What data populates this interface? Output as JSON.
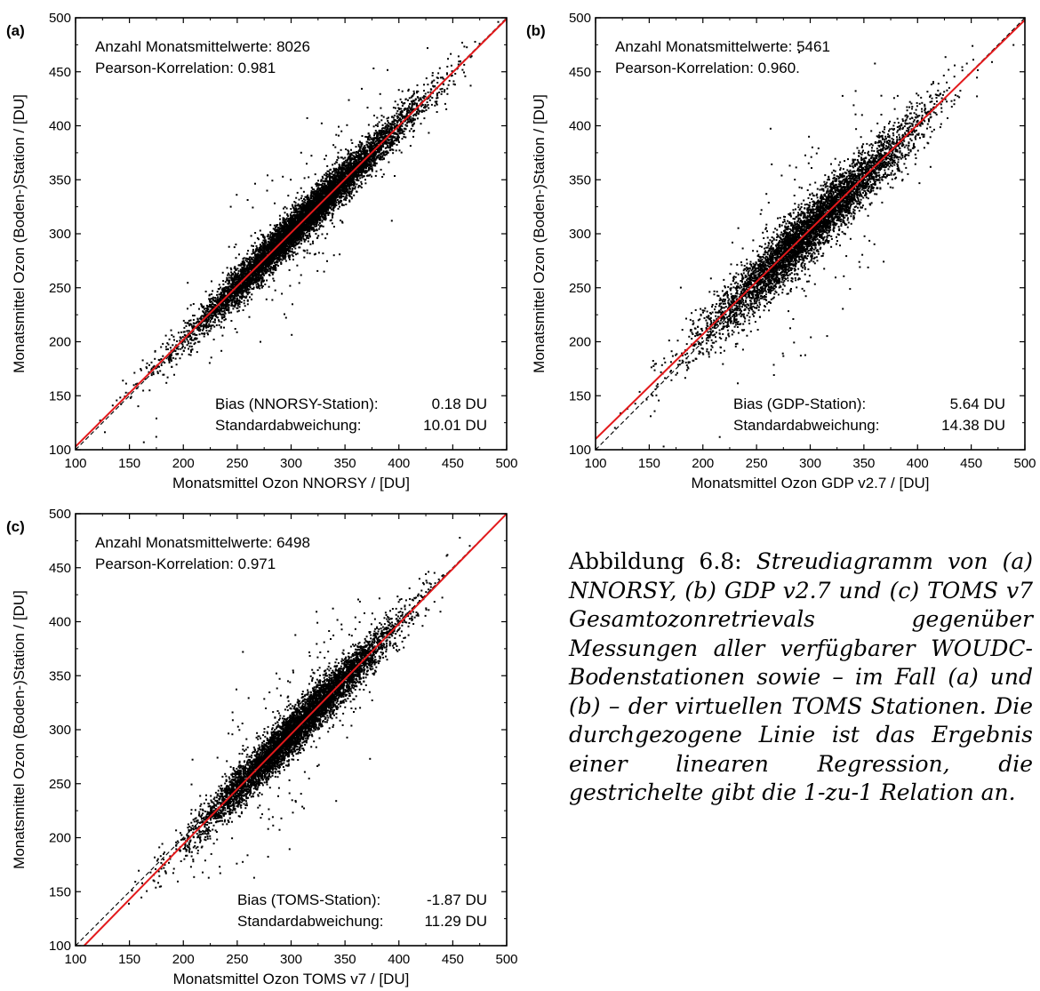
{
  "panels": [
    {
      "label": "(a)",
      "xlabel": "Monatsmittel Ozon NNORSY / [DU]",
      "ylabel": "Monatsmittel Ozon (Boden-)Station / [DU]",
      "annot_top": [
        "Anzahl Monatsmittelwerte: 8026",
        "Pearson-Korrelation: 0.981"
      ],
      "annot_bottom": [
        [
          "Bias (NNORSY-Station):",
          "0.18 DU"
        ],
        [
          "Standardabweichung:",
          "10.01 DU"
        ]
      ]
    },
    {
      "label": "(b)",
      "xlabel": "Monatsmittel Ozon GDP v2.7 / [DU]",
      "ylabel": "Monatsmittel Ozon (Boden-)Station / [DU]",
      "annot_top": [
        "Anzahl Monatsmittelwerte: 5461",
        "Pearson-Korrelation: 0.960."
      ],
      "annot_bottom": [
        [
          "Bias (GDP-Station):",
          "5.64 DU"
        ],
        [
          "Standardabweichung:",
          "14.38 DU"
        ]
      ]
    },
    {
      "label": "(c)",
      "xlabel": "Monatsmittel Ozon TOMS v7 / [DU]",
      "ylabel": "Monatsmittel Ozon (Boden-)Station / [DU]",
      "annot_top": [
        "Anzahl Monatsmittelwerte: 6498",
        "Pearson-Korrelation: 0.971"
      ],
      "annot_bottom": [
        [
          "Bias (TOMS-Station):",
          "-1.87 DU"
        ],
        [
          "Standardabweichung:",
          "11.29 DU"
        ]
      ]
    }
  ],
  "chart_data": [
    {
      "type": "scatter",
      "xlim": [
        100,
        500
      ],
      "ylim": [
        100,
        500
      ],
      "xticks": [
        100,
        150,
        200,
        250,
        300,
        350,
        400,
        450,
        500
      ],
      "yticks": [
        100,
        150,
        200,
        250,
        300,
        350,
        400,
        450,
        500
      ],
      "n_points": 8026,
      "pearson_r": 0.981,
      "bias_du": 0.18,
      "std_du": 10.01,
      "regression_line": {
        "color": "#e31a1c",
        "x": [
          100,
          500
        ],
        "y": [
          103,
          499
        ]
      },
      "identity_line": {
        "color": "#000000",
        "style": "dashed",
        "x": [
          100,
          500
        ],
        "y": [
          100,
          500
        ]
      },
      "point_color": "#000000",
      "scatter_model": {
        "center": 310,
        "spread": 52,
        "noise": 9,
        "outlier_rate": 0.03
      }
    },
    {
      "type": "scatter",
      "xlim": [
        100,
        500
      ],
      "ylim": [
        100,
        500
      ],
      "xticks": [
        100,
        150,
        200,
        250,
        300,
        350,
        400,
        450,
        500
      ],
      "yticks": [
        100,
        150,
        200,
        250,
        300,
        350,
        400,
        450,
        500
      ],
      "n_points": 5461,
      "pearson_r": 0.96,
      "bias_du": 5.64,
      "std_du": 14.38,
      "regression_line": {
        "color": "#e31a1c",
        "x": [
          100,
          500
        ],
        "y": [
          110,
          498
        ]
      },
      "identity_line": {
        "color": "#000000",
        "style": "dashed",
        "x": [
          100,
          500
        ],
        "y": [
          100,
          500
        ]
      },
      "point_color": "#000000",
      "scatter_model": {
        "center": 300,
        "spread": 50,
        "noise": 13,
        "outlier_rate": 0.04
      }
    },
    {
      "type": "scatter",
      "xlim": [
        100,
        500
      ],
      "ylim": [
        100,
        500
      ],
      "xticks": [
        100,
        150,
        200,
        250,
        300,
        350,
        400,
        450,
        500
      ],
      "yticks": [
        100,
        150,
        200,
        250,
        300,
        350,
        400,
        450,
        500
      ],
      "n_points": 6498,
      "pearson_r": 0.971,
      "bias_du": -1.87,
      "std_du": 11.29,
      "regression_line": {
        "color": "#e31a1c",
        "x": [
          108,
          500
        ],
        "y": [
          100,
          500
        ]
      },
      "identity_line": {
        "color": "#000000",
        "style": "dashed",
        "x": [
          100,
          500
        ],
        "y": [
          100,
          500
        ]
      },
      "point_color": "#000000",
      "scatter_model": {
        "center": 305,
        "spread": 45,
        "noise": 10,
        "outlier_rate": 0.035
      }
    }
  ],
  "caption": {
    "lead": "Abbildung 6.8:",
    "body": "Streudiagramm von (a) NNORSY, (b) GDP v2.7 und (c) TOMS v7 Gesamtozonretrievals gegenüber Messungen aller verfügbarer WOUDC-Bodenstationen sowie – im Fall (a) und (b) – der virtuellen TOMS Stationen. Die durchgezogene Linie ist das Ergebnis einer linearen Regression, die gestrichelte gibt die 1-zu-1 Relation an."
  }
}
